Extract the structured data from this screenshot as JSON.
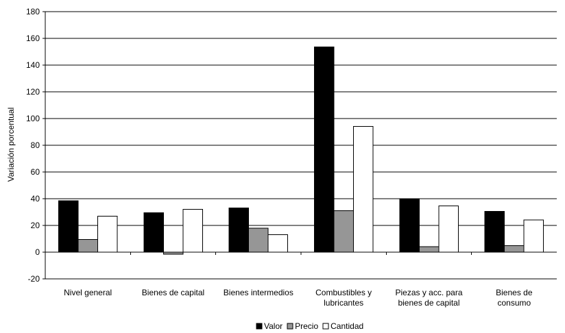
{
  "chart_data": {
    "type": "bar",
    "title": "",
    "xlabel": "",
    "ylabel": "Variación porcentual",
    "ylim": [
      -20,
      180
    ],
    "yticks": [
      -20,
      0,
      20,
      40,
      60,
      80,
      100,
      120,
      140,
      160,
      180
    ],
    "grid": true,
    "legend_position": "bottom",
    "categories": [
      [
        "Nivel general"
      ],
      [
        "Bienes de capital"
      ],
      [
        "Bienes intermedios"
      ],
      [
        "Combustibles y",
        "lubricantes"
      ],
      [
        "Piezas y acc. para",
        "bienes de capital"
      ],
      [
        "Bienes de",
        "consumo"
      ]
    ],
    "series": [
      {
        "name": "Valor",
        "color": "#000000",
        "values": [
          38.5,
          29.5,
          33,
          153.5,
          40,
          30.5
        ]
      },
      {
        "name": "Precio",
        "color": "#969696",
        "values": [
          9.5,
          -1.5,
          18,
          31,
          4,
          5
        ]
      },
      {
        "name": "Cantidad",
        "color": "#ffffff",
        "values": [
          27,
          32,
          13,
          94,
          34.5,
          24
        ]
      }
    ]
  }
}
